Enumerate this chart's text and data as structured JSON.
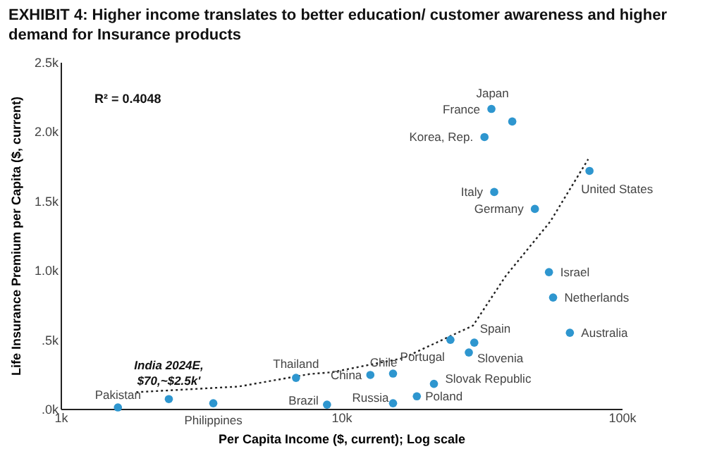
{
  "chart_data": {
    "type": "scatter",
    "title": "EXHIBIT 4: Higher income translates to better education/ customer awareness and higher demand for Insurance products",
    "xlabel": "Per Capita Income ($, current); Log scale",
    "ylabel": "Life Insurance Premium per Capita ($, current)",
    "log": "x",
    "xlim": [
      1000,
      100000
    ],
    "xticks": [
      {
        "value": 1000,
        "label": "1k"
      },
      {
        "value": 10000,
        "label": "10k"
      },
      {
        "value": 100000,
        "label": "100k"
      }
    ],
    "ylim": [
      0,
      2500
    ],
    "yticks": [
      {
        "value": 0,
        "label": ".0k"
      },
      {
        "value": 500,
        "label": ".5k"
      },
      {
        "value": 1000,
        "label": "1.0k"
      },
      {
        "value": 1500,
        "label": "1.5k"
      },
      {
        "value": 2000,
        "label": "2.0k"
      },
      {
        "value": 2500,
        "label": "2.5k"
      }
    ],
    "grid": false,
    "series": [
      {
        "color": "#2e96cf",
        "marker": "circle",
        "x": [
          1600,
          2430,
          3500,
          6900,
          8900,
          12700,
          15300,
          15300,
          18600,
          21400,
          24500,
          28500,
          29800,
          55000,
          56900,
          65300,
          76700,
          49000,
          35100,
          32400,
          40700,
          34300
        ],
        "values": [
          10,
          70,
          40,
          223,
          30,
          244,
          254,
          40,
          90,
          180,
          497,
          406,
          477,
          985,
          802,
          548,
          1715,
          1441,
          1563,
          1959,
          2071,
          2162
        ]
      },
      {
        "type": "line",
        "color": "#222222",
        "marker": "none",
        "line_style": "dotted",
        "x": [
          1860,
          4300,
          7700,
          9300,
          16600,
          29500,
          38500,
          55600,
          75900
        ],
        "values": [
          120,
          160,
          250,
          264,
          365,
          600,
          955,
          1350,
          1800
        ]
      }
    ],
    "annotations": [
      "R² = 0.4048",
      {
        "text": "Pakistan",
        "x": 1600,
        "y": 10
      },
      {
        "text": "India 2024E,\n$70,~$2.5k'",
        "x": 2430,
        "y": 70
      },
      {
        "text": "Philippines",
        "x": 3500,
        "y": 40
      },
      {
        "text": "Thailand",
        "x": 6900,
        "y": 223
      },
      {
        "text": "Brazil",
        "x": 8900,
        "y": 30
      },
      {
        "text": "China",
        "x": 12700,
        "y": 244
      },
      {
        "text": "Chile",
        "x": 15300,
        "y": 254
      },
      {
        "text": "Russia",
        "x": 15300,
        "y": 40
      },
      {
        "text": "Poland",
        "x": 18600,
        "y": 90
      },
      {
        "text": "Slovak Republic",
        "x": 21400,
        "y": 180
      },
      {
        "text": "Portugal",
        "x": 24500,
        "y": 497
      },
      {
        "text": "Slovenia",
        "x": 28500,
        "y": 406
      },
      {
        "text": "Spain",
        "x": 29800,
        "y": 477
      },
      {
        "text": "Israel",
        "x": 55000,
        "y": 985
      },
      {
        "text": "Netherlands",
        "x": 56900,
        "y": 802
      },
      {
        "text": "Australia",
        "x": 65300,
        "y": 548
      },
      {
        "text": "United States",
        "x": 76700,
        "y": 1715
      },
      {
        "text": "Germany",
        "x": 49000,
        "y": 1441
      },
      {
        "text": "Italy",
        "x": 35100,
        "y": 1563
      },
      {
        "text": "Korea, Rep.",
        "x": 32400,
        "y": 1959
      },
      {
        "text": "France",
        "x": 34300,
        "y": 2162
      },
      {
        "text": "Japan",
        "x": 40700,
        "y": 2071
      }
    ]
  }
}
